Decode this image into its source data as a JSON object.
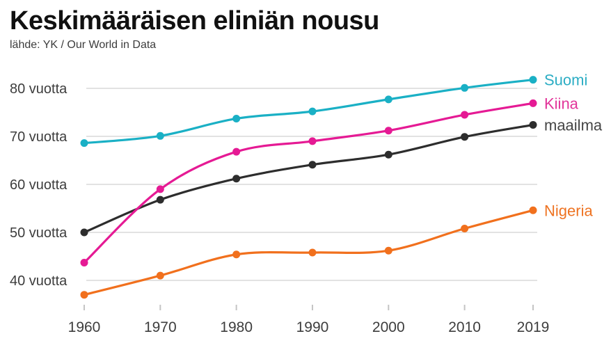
{
  "header": {
    "title": "Keskimääräisen eliniän nousu",
    "subtitle": "lähde: YK / Our World in Data"
  },
  "chart_data": {
    "type": "line",
    "title": "Keskimääräisen eliniän nousu",
    "source": "lähde: YK / Our World in Data",
    "x": [
      1960,
      1970,
      1980,
      1990,
      2000,
      2010,
      2019
    ],
    "x_tick_labels": [
      "1960",
      "1970",
      "1980",
      "1990",
      "2000",
      "2010",
      "2019"
    ],
    "y_axis": {
      "ticks": [
        80,
        70,
        60,
        50,
        40
      ],
      "tick_labels": [
        "80 vuotta",
        "70 vuotta",
        "60 vuotta",
        "50 vuotta",
        "40 vuotta"
      ],
      "unit": "vuotta",
      "range": [
        36,
        83
      ]
    },
    "grid": "horizontal-only",
    "legend_position": "labels-at-line-ends",
    "series": [
      {
        "name": "maailma",
        "color": "#2d2d2d",
        "label_color": "#454545",
        "values": [
          50.0,
          56.8,
          61.2,
          64.1,
          66.2,
          69.9,
          72.4
        ]
      },
      {
        "name": "Suomi",
        "color": "#1ab0c5",
        "label_color": "#2cadc4",
        "values": [
          68.6,
          70.1,
          73.7,
          75.2,
          77.7,
          80.1,
          81.8
        ]
      },
      {
        "name": "Kiina",
        "color": "#e51a94",
        "label_color": "#e2359a",
        "values": [
          43.7,
          59.0,
          66.8,
          69.0,
          71.2,
          74.5,
          76.9
        ]
      },
      {
        "name": "Nigeria",
        "color": "#f1701d",
        "label_color": "#ee7322",
        "values": [
          37.0,
          41.0,
          45.4,
          45.8,
          46.2,
          50.8,
          54.6
        ]
      }
    ],
    "style": {
      "gridline_color": "#d8d8d8",
      "tick_color": "#c4c4c4",
      "axis_text_color": "#3d3d3d"
    }
  }
}
